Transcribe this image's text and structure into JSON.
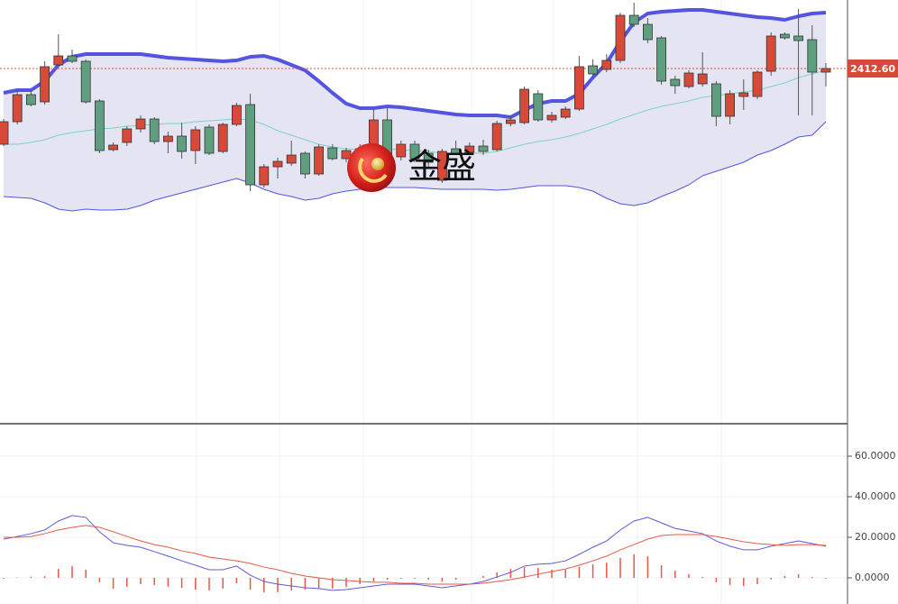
{
  "chart_data": [
    {
      "type": "candlestick",
      "ylim": [
        2314.1,
        2431.6
      ],
      "up_color": "#d9493a",
      "down_color": "#5f9f7f",
      "open": [
        2391.6,
        2397.85,
        2405.35,
        2403.35,
        2413.6,
        2416.1,
        2414.6,
        2403.6,
        2390.1,
        2392.1,
        2395.85,
        2398.6,
        2392.35,
        2393.85,
        2389.85,
        2396.35,
        2389.6,
        2397.1,
        2402.6,
        2380.35,
        2385.35,
        2386.35,
        2389.1,
        2383.35,
        2390.6,
        2387.6,
        2388.6,
        2391.6,
        2398.35,
        2388.1,
        2391.6,
        2389.1,
        2381.6,
        2390.35,
        2389.35,
        2391.1,
        2390.1,
        2397.35,
        2397.6,
        2405.6,
        2398.35,
        2399.1,
        2401.35,
        2413.35,
        2412.35,
        2414.85,
        2427.35,
        2424.85,
        2421.1,
        2409.6,
        2407.6,
        2408.35,
        2408.35,
        2399.35,
        2404.85,
        2404.85,
        2411.85,
        2422.1,
        2421.6,
        2420.6,
        2411.6
      ],
      "high": [
        2398.6,
        2406.6,
        2406.6,
        2414.6,
        2422.1,
        2417.85,
        2415.1,
        2404.1,
        2392.1,
        2396.6,
        2399.6,
        2399.1,
        2395.1,
        2397.6,
        2396.6,
        2397.1,
        2397.6,
        2403.1,
        2405.6,
        2386.1,
        2387.85,
        2392.6,
        2389.6,
        2391.6,
        2391.6,
        2390.6,
        2391.6,
        2401.35,
        2401.6,
        2392.6,
        2392.6,
        2390.1,
        2390.35,
        2392.6,
        2392.1,
        2392.85,
        2398.1,
        2399.6,
        2407.6,
        2406.6,
        2400.6,
        2402.1,
        2416.1,
        2415.1,
        2416.6,
        2428.1,
        2430.85,
        2426.6,
        2421.6,
        2410.6,
        2412.1,
        2417.1,
        2409.1,
        2406.6,
        2409.6,
        2412.1,
        2422.6,
        2422.6,
        2429.1,
        2424.6,
        2414.1
      ],
      "low": [
        2391.1,
        2397.1,
        2402.1,
        2402.6,
        2413.1,
        2414.1,
        2402.85,
        2389.1,
        2389.6,
        2391.1,
        2394.85,
        2391.6,
        2389.1,
        2387.6,
        2386.1,
        2388.6,
        2389.1,
        2396.6,
        2378.6,
        2379.6,
        2382.1,
        2385.6,
        2382.1,
        2382.85,
        2387.1,
        2386.6,
        2387.6,
        2390.35,
        2386.6,
        2387.1,
        2386.6,
        2385.35,
        2380.85,
        2388.6,
        2388.6,
        2388.6,
        2389.6,
        2396.6,
        2397.1,
        2397.85,
        2397.6,
        2398.6,
        2400.85,
        2410.35,
        2411.6,
        2414.1,
        2424.1,
        2419.6,
        2408.1,
        2405.6,
        2407.1,
        2407.6,
        2396.6,
        2397.1,
        2401.1,
        2404.1,
        2410.6,
        2420.6,
        2399.6,
        2399.6,
        2407.6
      ],
      "close": [
        2397.85,
        2405.35,
        2402.6,
        2413.1,
        2416.1,
        2414.6,
        2403.35,
        2389.85,
        2391.35,
        2395.85,
        2398.6,
        2392.35,
        2393.85,
        2389.6,
        2395.6,
        2389.1,
        2397.1,
        2402.35,
        2380.35,
        2385.35,
        2386.85,
        2388.6,
        2383.35,
        2390.85,
        2387.6,
        2389.85,
        2390.35,
        2398.35,
        2387.85,
        2391.6,
        2387.6,
        2386.6,
        2389.6,
        2389.1,
        2391.1,
        2389.6,
        2397.35,
        2398.35,
        2406.85,
        2398.35,
        2399.6,
        2401.35,
        2413.1,
        2411.1,
        2414.85,
        2427.35,
        2424.85,
        2420.6,
        2409.1,
        2407.85,
        2411.35,
        2411.1,
        2399.35,
        2405.6,
        2405.85,
        2411.6,
        2421.6,
        2421.1,
        2420.35,
        2411.6,
        2412.6
      ],
      "band_fill": "#e4e4f2",
      "bands": [
        {
          "color": "#5454e0",
          "values": [
            2405.85,
            2406.6,
            2406.6,
            2409.1,
            2413.6,
            2415.85,
            2416.6,
            2416.6,
            2416.6,
            2416.6,
            2416.6,
            2416.1,
            2415.6,
            2415.35,
            2415.1,
            2414.85,
            2414.6,
            2414.85,
            2415.85,
            2416.1,
            2415.1,
            2413.6,
            2412.1,
            2409.1,
            2405.85,
            2402.85,
            2401.6,
            2401.6,
            2402.1,
            2401.85,
            2401.35,
            2400.85,
            2400.35,
            2399.85,
            2399.6,
            2399.6,
            2399.6,
            2399.1,
            2401.1,
            2402.85,
            2403.6,
            2403.6,
            2405.6,
            2410.1,
            2414.1,
            2420.1,
            2425.35,
            2427.85,
            2428.35,
            2428.6,
            2428.85,
            2428.85,
            2428.35,
            2427.85,
            2427.35,
            2426.85,
            2426.6,
            2426.1,
            2427.1,
            2427.85,
            2428.1
          ]
        },
        {
          "color": "#7fd3c3",
          "values": [
            2391.6,
            2391.6,
            2392.1,
            2392.85,
            2394.1,
            2394.85,
            2395.35,
            2395.85,
            2396.1,
            2396.6,
            2396.85,
            2397.1,
            2397.35,
            2397.35,
            2397.85,
            2398.1,
            2398.35,
            2398.6,
            2398.35,
            2397.1,
            2395.35,
            2394.1,
            2392.85,
            2391.6,
            2390.85,
            2390.35,
            2390.1,
            2390.1,
            2390.35,
            2390.1,
            2389.85,
            2389.6,
            2389.1,
            2389.1,
            2389.1,
            2389.1,
            2389.6,
            2390.6,
            2391.6,
            2392.35,
            2392.85,
            2393.6,
            2394.6,
            2395.85,
            2397.1,
            2398.6,
            2399.85,
            2401.1,
            2402.1,
            2402.85,
            2403.6,
            2404.6,
            2405.1,
            2405.6,
            2406.1,
            2406.6,
            2407.6,
            2408.6,
            2410.1,
            2411.1,
            2412.1
          ]
        },
        {
          "color": "#5454e0",
          "values": [
            2377.1,
            2376.85,
            2376.6,
            2375.35,
            2373.6,
            2373.1,
            2373.6,
            2373.35,
            2373.35,
            2373.6,
            2374.6,
            2376.1,
            2377.1,
            2378.1,
            2379.1,
            2380.1,
            2381.1,
            2382.1,
            2380.85,
            2379.1,
            2377.85,
            2377.1,
            2376.1,
            2376.6,
            2377.85,
            2378.6,
            2379.1,
            2379.6,
            2379.6,
            2379.6,
            2379.6,
            2379.35,
            2379.1,
            2379.1,
            2379.1,
            2379.1,
            2378.85,
            2379.1,
            2379.6,
            2380.1,
            2380.1,
            2380.1,
            2379.6,
            2378.6,
            2376.6,
            2375.1,
            2374.6,
            2375.35,
            2377.1,
            2378.6,
            2380.35,
            2382.85,
            2384.1,
            2385.35,
            2386.6,
            2388.6,
            2389.85,
            2391.6,
            2393.6,
            2394.1,
            2397.85
          ]
        }
      ],
      "price_marker": {
        "value": 2412.6,
        "label": "2412.60",
        "color": "#d9493a"
      },
      "watermark": "金盛"
    },
    {
      "type": "macd",
      "ylim": [
        -12.9,
        76
      ],
      "yticks": [
        {
          "value": 60,
          "label": "60.0000"
        },
        {
          "value": 40,
          "label": "40.0000"
        },
        {
          "value": 20,
          "label": "20.0000"
        },
        {
          "value": 0,
          "label": "0.0000"
        }
      ],
      "grid": true,
      "series": [
        {
          "color": "#5b5bd6",
          "values": [
            19.1,
            20.4,
            21.8,
            23.6,
            28.0,
            30.7,
            29.8,
            22.7,
            17.3,
            16.0,
            15.1,
            12.9,
            10.7,
            8.4,
            6.2,
            4.0,
            4.0,
            5.8,
            1.3,
            -1.8,
            -3.1,
            -4.0,
            -4.9,
            -5.3,
            -6.2,
            -5.8,
            -4.9,
            -4.0,
            -3.1,
            -3.1,
            -3.1,
            -4.0,
            -4.9,
            -4.0,
            -3.1,
            -1.8,
            0.4,
            2.7,
            5.8,
            6.7,
            7.1,
            8.4,
            11.6,
            15.1,
            18.2,
            23.6,
            28.0,
            29.8,
            27.1,
            24.4,
            23.1,
            21.8,
            18.2,
            15.6,
            13.8,
            13.8,
            15.6,
            16.9,
            18.2,
            16.9,
            15.6
          ]
        },
        {
          "color": "#e8574a",
          "values": [
            20.0,
            20.0,
            20.4,
            21.8,
            23.6,
            24.9,
            25.8,
            24.9,
            22.7,
            20.4,
            18.2,
            16.4,
            15.1,
            13.3,
            12.0,
            10.2,
            9.3,
            8.4,
            7.1,
            5.3,
            4.0,
            2.2,
            0.9,
            0,
            -0.9,
            -1.3,
            -1.8,
            -2.2,
            -2.2,
            -2.7,
            -2.7,
            -3.1,
            -3.1,
            -3.1,
            -3.1,
            -2.7,
            -1.8,
            -0.9,
            0.4,
            1.8,
            3.1,
            4.4,
            6.2,
            8.4,
            10.7,
            13.8,
            16.4,
            19.1,
            20.9,
            21.3,
            21.3,
            21.3,
            20.4,
            19.1,
            17.8,
            16.9,
            16.4,
            16.0,
            16.4,
            16.4,
            16.0
          ]
        }
      ],
      "histogram": {
        "color": "#e8574a",
        "values": [
          -0.4,
          0.2,
          0.6,
          0.8,
          4.4,
          5.8,
          4.0,
          -2.2,
          -5.4,
          -4.4,
          -3.1,
          -3.5,
          -4.4,
          -4.9,
          -5.8,
          -6.2,
          -5.3,
          -2.6,
          -5.8,
          -7.1,
          -7.1,
          -6.2,
          -5.8,
          -5.3,
          -5.3,
          -4.5,
          -3.1,
          -1.8,
          -0.9,
          -0.4,
          -0.4,
          -0.9,
          -1.8,
          -0.9,
          0,
          0.9,
          2.7,
          4.4,
          5.3,
          4.9,
          4.0,
          4.0,
          5.4,
          6.7,
          7.5,
          9.8,
          11.6,
          10.7,
          6.2,
          3.5,
          1.8,
          0.5,
          -2.2,
          -3.5,
          -4.0,
          -3.1,
          -0.8,
          0.9,
          1.8,
          0.5,
          -0.4
        ]
      }
    }
  ]
}
